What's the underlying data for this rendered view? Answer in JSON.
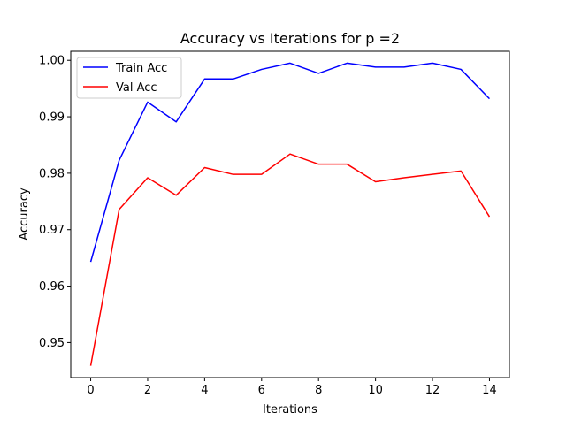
{
  "chart_data": {
    "type": "line",
    "title": "Accuracy vs Iterations for p =2",
    "xlabel": "Iterations",
    "ylabel": "Accuracy",
    "xlim": [
      -0.7,
      14.7
    ],
    "ylim": [
      0.9438,
      1.0016
    ],
    "x_ticks": [
      0,
      2,
      4,
      6,
      8,
      10,
      12,
      14
    ],
    "x_tick_labels": [
      "0",
      "2",
      "4",
      "6",
      "8",
      "10",
      "12",
      "14"
    ],
    "y_ticks": [
      0.95,
      0.96,
      0.97,
      0.98,
      0.99,
      1.0
    ],
    "y_tick_labels": [
      "0.95",
      "0.96",
      "0.97",
      "0.98",
      "0.99",
      "1.00"
    ],
    "grid": false,
    "legend_position": "top-left",
    "x": [
      0,
      1,
      2,
      3,
      4,
      5,
      6,
      7,
      8,
      9,
      10,
      11,
      12,
      13,
      14
    ],
    "series": [
      {
        "name": "Train Acc",
        "color": "#0000ff",
        "values": [
          0.9643,
          0.9823,
          0.9926,
          0.9891,
          0.9967,
          0.9967,
          0.9984,
          0.9995,
          0.9977,
          0.9995,
          0.9988,
          0.9988,
          0.9995,
          0.9984,
          0.9932
        ]
      },
      {
        "name": "Val Acc",
        "color": "#ff0000",
        "values": [
          0.9459,
          0.9736,
          0.9792,
          0.9761,
          0.981,
          0.9798,
          0.9798,
          0.9834,
          0.9816,
          0.9816,
          0.9785,
          0.9792,
          0.9798,
          0.9804,
          0.9723
        ]
      }
    ]
  }
}
